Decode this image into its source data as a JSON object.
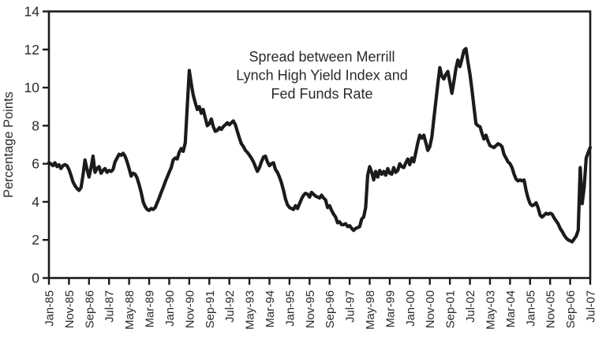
{
  "chart_data": {
    "type": "line",
    "title_lines": [
      "Spread between Merrill",
      "Lynch High Yield Index and",
      "Fed Funds Rate"
    ],
    "ylabel": "Percentage Points",
    "xlabel": "",
    "ylim": [
      0,
      14
    ],
    "yticks": [
      0,
      2,
      4,
      6,
      8,
      10,
      12,
      14
    ],
    "xtick_interval_months": 10,
    "xtick_labels": [
      "Jan-85",
      "Nov-85",
      "Sep-86",
      "Jul-87",
      "May-88",
      "Mar-89",
      "Jan-90",
      "Nov-90",
      "Sep-91",
      "Jul-92",
      "May-93",
      "Mar-94",
      "Jan-95",
      "Nov-95",
      "Sep-96",
      "Jul-97",
      "May-98",
      "Mar-99",
      "Jan-00",
      "Nov-00",
      "Sep-01",
      "Jul-02",
      "May-03",
      "Mar-04",
      "Jan-05",
      "Nov-05",
      "Sep-06",
      "Jul-07"
    ],
    "grid": false,
    "legend": "none",
    "frame": "full-box",
    "line_color": "#1b1b1b",
    "text_color": "#2a2a2a",
    "background_color": "#ffffff",
    "series": [
      {
        "name": "Spread (Merrill Lynch High Yield Index minus Fed Funds Rate)",
        "start": "Jan-85",
        "frequency": "monthly",
        "unit": "percentage points",
        "values": [
          6.05,
          6.0,
          5.9,
          6.05,
          5.85,
          5.95,
          5.75,
          5.9,
          5.95,
          5.9,
          5.7,
          5.4,
          5.05,
          4.85,
          4.7,
          4.6,
          4.75,
          5.4,
          6.2,
          5.7,
          5.3,
          5.8,
          6.4,
          5.55,
          5.75,
          5.85,
          5.5,
          5.65,
          5.75,
          5.55,
          5.65,
          5.6,
          5.7,
          6.1,
          6.3,
          6.5,
          6.45,
          6.55,
          6.4,
          6.1,
          5.75,
          5.35,
          5.5,
          5.45,
          5.25,
          4.9,
          4.5,
          4.0,
          3.75,
          3.6,
          3.55,
          3.65,
          3.6,
          3.7,
          3.95,
          4.2,
          4.5,
          4.75,
          5.05,
          5.3,
          5.55,
          5.8,
          6.2,
          6.3,
          6.25,
          6.6,
          6.8,
          6.65,
          7.1,
          9.0,
          10.9,
          10.2,
          9.6,
          9.2,
          8.85,
          9.0,
          8.65,
          8.85,
          8.4,
          8.0,
          8.1,
          8.35,
          7.95,
          7.7,
          7.75,
          7.9,
          7.8,
          7.95,
          8.05,
          8.15,
          8.05,
          8.15,
          8.25,
          8.05,
          7.7,
          7.35,
          7.05,
          6.9,
          6.7,
          6.6,
          6.45,
          6.3,
          6.1,
          5.85,
          5.6,
          5.8,
          6.1,
          6.35,
          6.4,
          6.1,
          5.9,
          6.0,
          6.05,
          5.7,
          5.55,
          5.3,
          5.0,
          4.6,
          4.15,
          3.85,
          3.7,
          3.65,
          3.6,
          3.8,
          3.65,
          3.9,
          4.15,
          4.35,
          4.45,
          4.4,
          4.25,
          4.5,
          4.4,
          4.3,
          4.25,
          4.2,
          4.35,
          4.2,
          4.1,
          3.7,
          3.8,
          3.55,
          3.35,
          3.2,
          2.9,
          2.95,
          2.8,
          2.8,
          2.85,
          2.7,
          2.75,
          2.6,
          2.5,
          2.6,
          2.65,
          2.7,
          3.1,
          3.2,
          3.7,
          5.4,
          5.85,
          5.55,
          5.15,
          5.6,
          5.3,
          5.65,
          5.45,
          5.6,
          5.4,
          5.75,
          5.5,
          5.45,
          5.8,
          5.55,
          5.65,
          6.0,
          5.85,
          5.8,
          6.05,
          6.25,
          5.95,
          6.3,
          6.1,
          6.6,
          7.1,
          7.5,
          7.35,
          7.5,
          7.1,
          6.7,
          6.9,
          7.4,
          8.35,
          9.3,
          10.2,
          11.05,
          10.6,
          10.45,
          10.7,
          10.85,
          10.3,
          9.7,
          10.3,
          11.0,
          11.45,
          11.1,
          11.5,
          11.95,
          12.05,
          11.35,
          10.7,
          9.9,
          9.0,
          8.1,
          8.0,
          7.95,
          7.6,
          7.3,
          7.5,
          7.2,
          6.95,
          6.9,
          6.85,
          6.95,
          7.05,
          7.0,
          6.9,
          6.5,
          6.3,
          6.1,
          6.0,
          5.8,
          5.45,
          5.2,
          5.1,
          5.15,
          5.1,
          5.15,
          4.6,
          4.2,
          3.9,
          3.8,
          3.85,
          3.95,
          3.7,
          3.3,
          3.2,
          3.3,
          3.4,
          3.35,
          3.4,
          3.35,
          3.15,
          3.0,
          2.85,
          2.6,
          2.45,
          2.25,
          2.1,
          2.0,
          1.95,
          1.9,
          2.05,
          2.2,
          2.5,
          5.8,
          3.9,
          4.8,
          6.3,
          6.6,
          6.85
        ]
      }
    ]
  }
}
